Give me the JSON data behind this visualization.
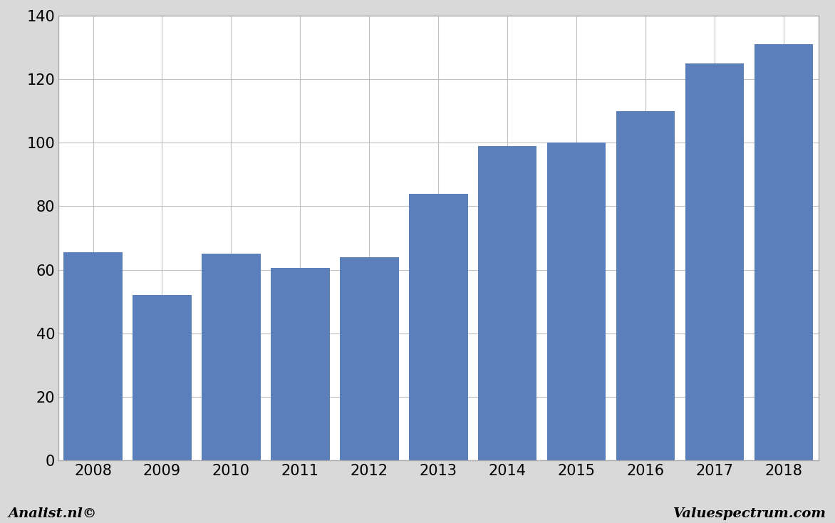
{
  "categories": [
    "2008",
    "2009",
    "2010",
    "2011",
    "2012",
    "2013",
    "2014",
    "2015",
    "2016",
    "2017",
    "2018"
  ],
  "values": [
    65.5,
    52,
    65,
    60.5,
    64,
    84,
    99,
    100,
    110,
    125,
    131
  ],
  "bar_color": "#5b7fbb",
  "ylim": [
    0,
    140
  ],
  "yticks": [
    0,
    20,
    40,
    60,
    80,
    100,
    120,
    140
  ],
  "background_color": "#d9d9d9",
  "plot_area_color": "#ffffff",
  "grid_color": "#c0c0c0",
  "footer_left": "Analist.nl©",
  "footer_right": "Valuespectrum.com",
  "footer_fontsize": 14,
  "tick_fontsize": 15,
  "border_color": "#aaaaaa"
}
